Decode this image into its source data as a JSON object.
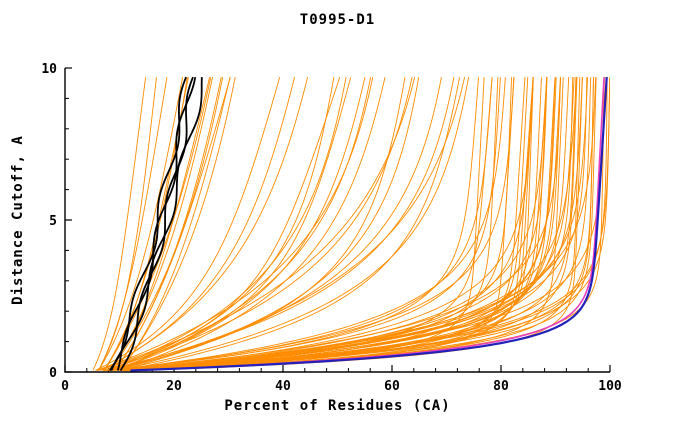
{
  "chart_data": {
    "type": "line",
    "title": "T0995-D1",
    "xlabel": "Percent of Residues (CA)",
    "ylabel": "Distance Cutoff, A",
    "xlim": [
      0,
      100
    ],
    "ylim": [
      0,
      10
    ],
    "xticks": [
      0,
      20,
      40,
      60,
      80,
      100
    ],
    "yticks": [
      0,
      5,
      10
    ],
    "x_minor_step": 4,
    "y_minor_step": 1,
    "grid": false,
    "legend": "none",
    "colors": {
      "orange": "#ff8c00",
      "black": "#000000",
      "blue": "#2222bb",
      "magenta": "#e83fc0",
      "axis": "#000000"
    },
    "curve_model": "x(y) = x0 + amp*(1-exp(-y/tau)) + slope*y ; x = percent of residues, y = distance cutoff (A)",
    "y_draw_range": [
      0.05,
      9.7
    ],
    "black_wiggle_amp": 0.7,
    "series": {
      "orange_models": [
        [
          6,
          4,
          2,
          0.9
        ],
        [
          6,
          6,
          2.5,
          1.0
        ],
        [
          7,
          5,
          1.8,
          1.1
        ],
        [
          7,
          8,
          3,
          0.8
        ],
        [
          8,
          6,
          2.2,
          1.3
        ],
        [
          8,
          10,
          3.5,
          1.0
        ],
        [
          9,
          7,
          2.8,
          1.5
        ],
        [
          9,
          12,
          4,
          0.9
        ],
        [
          10,
          9,
          3,
          1.2
        ],
        [
          7,
          14,
          5,
          0.8
        ],
        [
          8,
          16,
          4.5,
          0.7
        ],
        [
          10,
          18,
          5,
          0.6
        ],
        [
          5,
          3,
          1.5,
          0.7
        ],
        [
          6,
          5,
          2,
          0.6
        ],
        [
          5,
          20,
          2,
          1.5
        ],
        [
          6,
          25,
          2.5,
          1.2
        ],
        [
          6,
          30,
          3,
          1.0
        ],
        [
          7,
          35,
          2.2,
          0.8
        ],
        [
          7,
          40,
          2.8,
          0.6
        ],
        [
          8,
          45,
          3,
          0.5
        ],
        [
          5,
          28,
          1.5,
          1.8
        ],
        [
          6,
          33,
          1.8,
          1.4
        ],
        [
          8,
          38,
          2.4,
          1.0
        ],
        [
          9,
          42,
          2.6,
          0.9
        ],
        [
          5,
          50,
          3.2,
          0.4
        ],
        [
          6,
          55,
          3.0,
          0.5
        ],
        [
          7,
          48,
          2.0,
          0.8
        ],
        [
          8,
          52,
          2.4,
          0.6
        ],
        [
          9,
          58,
          2.8,
          0.4
        ],
        [
          5,
          60,
          3.5,
          0.3
        ],
        [
          6,
          62,
          2.6,
          0.5
        ],
        [
          7,
          65,
          3.0,
          0.4
        ],
        [
          8,
          60,
          2.2,
          0.7
        ],
        [
          9,
          55,
          1.9,
          0.9
        ],
        [
          4,
          70,
          0.5,
          0.3
        ],
        [
          5,
          72,
          0.7,
          0.25
        ],
        [
          6,
          74,
          0.9,
          0.2
        ],
        [
          7,
          76,
          1.1,
          0.3
        ],
        [
          8,
          78,
          1.3,
          0.25
        ],
        [
          4,
          80,
          0.6,
          0.2
        ],
        [
          5,
          82,
          0.8,
          0.3
        ],
        [
          6,
          84,
          1.0,
          0.25
        ],
        [
          7,
          86,
          1.2,
          0.2
        ],
        [
          8,
          88,
          1.4,
          0.15
        ],
        [
          4,
          75,
          0.45,
          0.35
        ],
        [
          5,
          77,
          0.65,
          0.3
        ],
        [
          6,
          79,
          0.85,
          0.25
        ],
        [
          7,
          81,
          1.05,
          0.2
        ],
        [
          8,
          83,
          1.25,
          0.3
        ],
        [
          4,
          85,
          0.55,
          0.25
        ],
        [
          5,
          87,
          0.75,
          0.2
        ],
        [
          6,
          89,
          0.95,
          0.15
        ],
        [
          7,
          91,
          1.15,
          0.1
        ],
        [
          8,
          76,
          1.35,
          0.2
        ],
        [
          4,
          78,
          0.5,
          0.4
        ],
        [
          5,
          80,
          0.7,
          0.35
        ],
        [
          6,
          82,
          0.9,
          0.3
        ],
        [
          7,
          84,
          1.1,
          0.25
        ],
        [
          8,
          86,
          1.3,
          0.2
        ],
        [
          5,
          88,
          0.6,
          0.15
        ],
        [
          6,
          90,
          0.8,
          0.1
        ],
        [
          7,
          92,
          1.0,
          0.1
        ],
        [
          4,
          73,
          1.2,
          0.3
        ],
        [
          5,
          75,
          1.4,
          0.25
        ],
        [
          6,
          77,
          0.55,
          0.3
        ],
        [
          7,
          79,
          0.75,
          0.25
        ],
        [
          8,
          81,
          0.95,
          0.2
        ],
        [
          4,
          83,
          1.15,
          0.15
        ],
        [
          5,
          85,
          1.35,
          0.1
        ],
        [
          6,
          87,
          0.5,
          0.2
        ],
        [
          7,
          89,
          0.7,
          0.15
        ],
        [
          8,
          91,
          0.9,
          0.1
        ],
        [
          4,
          68,
          1.1,
          0.4
        ],
        [
          5,
          70,
          1.3,
          0.35
        ],
        [
          6,
          72,
          1.5,
          0.3
        ],
        [
          7,
          74,
          0.6,
          0.35
        ],
        [
          8,
          66,
          0.8,
          0.45
        ],
        [
          4,
          88,
          1.0,
          0.12
        ],
        [
          5,
          90,
          1.2,
          0.08
        ],
        [
          6,
          92,
          0.65,
          0.1
        ],
        [
          7,
          85,
          0.85,
          0.18
        ],
        [
          8,
          80,
          1.05,
          0.22
        ],
        [
          4,
          92,
          0.75,
          0.1
        ],
        [
          5,
          94,
          0.95,
          0.05
        ]
      ],
      "black_models": [
        [
          8,
          5,
          3,
          1.0
        ],
        [
          9,
          6,
          4,
          0.9
        ],
        [
          9,
          4,
          2.5,
          1.3
        ],
        [
          10,
          7,
          5,
          0.8
        ]
      ],
      "magenta_model": [
        5,
        91,
        0.6,
        0.3
      ],
      "blue_model": [
        4,
        92,
        0.55,
        0.35
      ]
    }
  }
}
